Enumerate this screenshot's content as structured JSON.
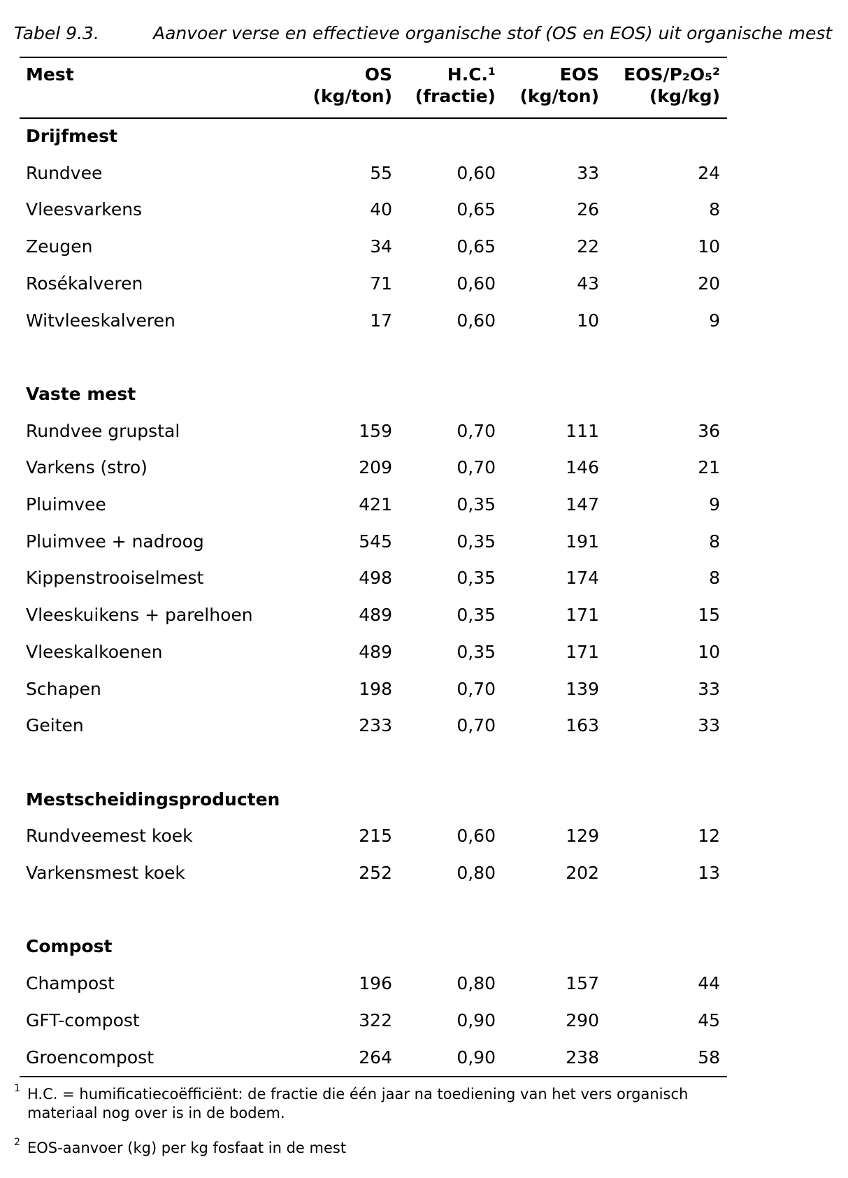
{
  "caption": {
    "label": "Tabel 9.3.",
    "title": "Aanvoer verse en effectieve organische stof (OS en EOS) uit organische mest"
  },
  "table": {
    "header": [
      [
        "Mest"
      ],
      [
        "OS",
        "(kg/ton)"
      ],
      [
        "H.C.¹",
        "(fractie)"
      ],
      [
        "EOS",
        "(kg/ton)"
      ],
      [
        "EOS/P₂O₅²",
        "(kg/kg)"
      ]
    ],
    "groups": [
      {
        "name": "Drijfmest",
        "rows": [
          [
            "Rundvee",
            "55",
            "0,60",
            "33",
            "24"
          ],
          [
            "Vleesvarkens",
            "40",
            "0,65",
            "26",
            "8"
          ],
          [
            "Zeugen",
            "34",
            "0,65",
            "22",
            "10"
          ],
          [
            "Rosékalveren",
            "71",
            "0,60",
            "43",
            "20"
          ],
          [
            "Witvleeskalveren",
            "17",
            "0,60",
            "10",
            "9"
          ]
        ]
      },
      {
        "name": "Vaste mest",
        "rows": [
          [
            "Rundvee grupstal",
            "159",
            "0,70",
            "111",
            "36"
          ],
          [
            "Varkens (stro)",
            "209",
            "0,70",
            "146",
            "21"
          ],
          [
            "Pluimvee",
            "421",
            "0,35",
            "147",
            "9"
          ],
          [
            "Pluimvee + nadroog",
            "545",
            "0,35",
            "191",
            "8"
          ],
          [
            "Kippenstrooiselmest",
            "498",
            "0,35",
            "174",
            "8"
          ],
          [
            "Vleeskuikens + parelhoen",
            "489",
            "0,35",
            "171",
            "15"
          ],
          [
            "Vleeskalkoenen",
            "489",
            "0,35",
            "171",
            "10"
          ],
          [
            "Schapen",
            "198",
            "0,70",
            "139",
            "33"
          ],
          [
            "Geiten",
            "233",
            "0,70",
            "163",
            "33"
          ]
        ]
      },
      {
        "name": "Mestscheidingsproducten",
        "rows": [
          [
            "Rundveemest koek",
            "215",
            "0,60",
            "129",
            "12"
          ],
          [
            "Varkensmest koek",
            "252",
            "0,80",
            "202",
            "13"
          ]
        ]
      },
      {
        "name": "Compost",
        "rows": [
          [
            "Champost",
            "196",
            "0,80",
            "157",
            "44"
          ],
          [
            "GFT-compost",
            "322",
            "0,90",
            "290",
            "45"
          ],
          [
            "Groencompost",
            "264",
            "0,90",
            "238",
            "58"
          ]
        ]
      }
    ]
  },
  "footnotes": [
    {
      "marker": "1",
      "text": [
        "H.C. = humificatiecoëfficiënt: de fractie die één jaar na toediening van het vers organisch",
        "materiaal nog over is in de bodem."
      ]
    },
    {
      "marker": "2",
      "text": [
        "EOS-aanvoer (kg) per kg fosfaat in de mest"
      ]
    }
  ]
}
